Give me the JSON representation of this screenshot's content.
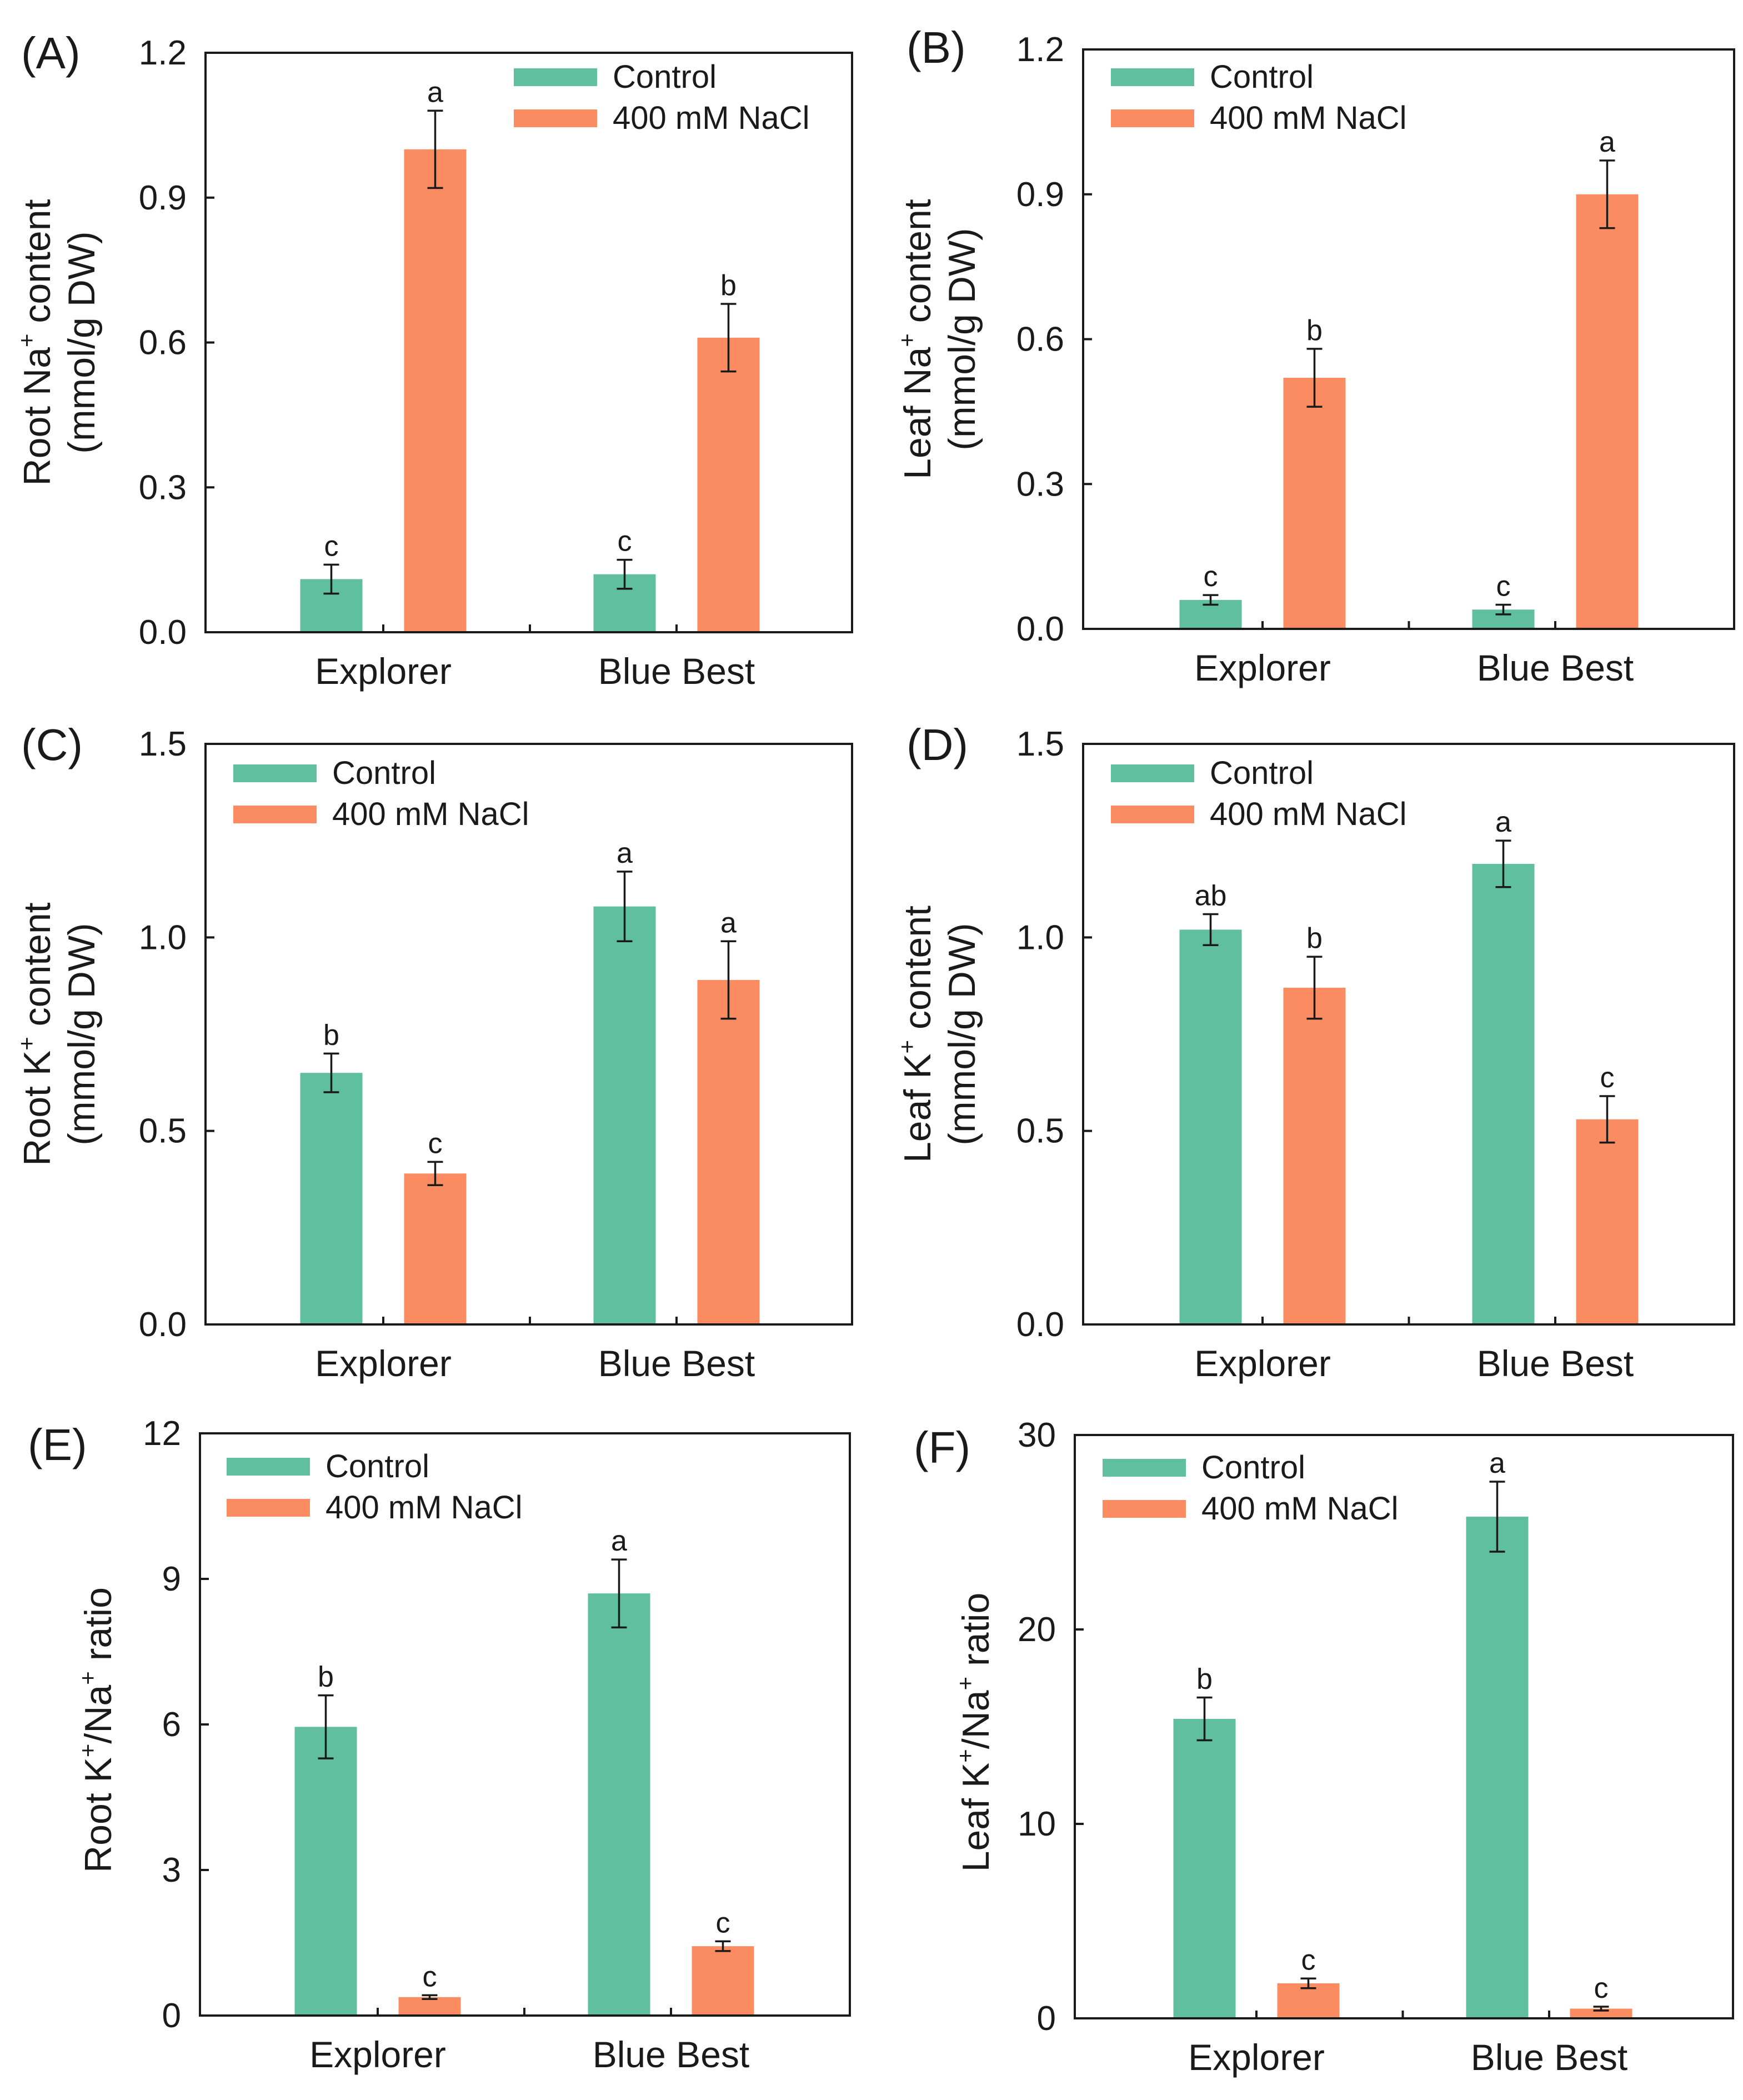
{
  "chart_data": [
    {
      "type": "bar",
      "panel": "(A)",
      "ylabel_prefix": "Root Na",
      "ylabel_sup": "+",
      "ylabel_suffix": " content",
      "ylabel_unit": "(mmol/g DW)",
      "ylim": [
        0,
        1.2
      ],
      "yticks": [
        0.0,
        0.3,
        0.6,
        0.9,
        1.2
      ],
      "ytick_labels": [
        "0.0",
        "0.3",
        "0.6",
        "0.9",
        "1.2"
      ],
      "categories": [
        "Explorer",
        "Blue Best"
      ],
      "legend_position": "top-right",
      "series": [
        {
          "name": "Control",
          "color": "#5fbf9f",
          "values": [
            0.11,
            0.12
          ],
          "errors": [
            0.03,
            0.03
          ],
          "letters": [
            "c",
            "c"
          ]
        },
        {
          "name": "400 mM NaCl",
          "color": "#fb8c62",
          "values": [
            1.0,
            0.61
          ],
          "errors": [
            0.08,
            0.07
          ],
          "letters": [
            "a",
            "b"
          ]
        }
      ]
    },
    {
      "type": "bar",
      "panel": "(B)",
      "ylabel_prefix": "Leaf Na",
      "ylabel_sup": "+",
      "ylabel_suffix": " content",
      "ylabel_unit": "(mmol/g DW)",
      "ylim": [
        0,
        1.2
      ],
      "yticks": [
        0.0,
        0.3,
        0.6,
        0.9,
        1.2
      ],
      "ytick_labels": [
        "0.0",
        "0.3",
        "0.6",
        "0.9",
        "1.2"
      ],
      "categories": [
        "Explorer",
        "Blue Best"
      ],
      "legend_position": "top-left",
      "series": [
        {
          "name": "Control",
          "color": "#5fbf9f",
          "values": [
            0.06,
            0.04
          ],
          "errors": [
            0.01,
            0.01
          ],
          "letters": [
            "c",
            "c"
          ]
        },
        {
          "name": "400 mM NaCl",
          "color": "#fb8c62",
          "values": [
            0.52,
            0.9
          ],
          "errors": [
            0.06,
            0.07
          ],
          "letters": [
            "b",
            "a"
          ]
        }
      ]
    },
    {
      "type": "bar",
      "panel": "(C)",
      "ylabel_prefix": "Root K",
      "ylabel_sup": "+",
      "ylabel_suffix": " content",
      "ylabel_unit": "(mmol/g DW)",
      "ylim": [
        0,
        1.5
      ],
      "yticks": [
        0.0,
        0.5,
        1.0,
        1.5
      ],
      "ytick_labels": [
        "0.0",
        "0.5",
        "1.0",
        "1.5"
      ],
      "categories": [
        "Explorer",
        "Blue Best"
      ],
      "legend_position": "top-left",
      "series": [
        {
          "name": "Control",
          "color": "#5fbf9f",
          "values": [
            0.65,
            1.08
          ],
          "errors": [
            0.05,
            0.09
          ],
          "letters": [
            "b",
            "a"
          ]
        },
        {
          "name": "400 mM NaCl",
          "color": "#fb8c62",
          "values": [
            0.39,
            0.89
          ],
          "errors": [
            0.03,
            0.1
          ],
          "letters": [
            "c",
            "a"
          ]
        }
      ]
    },
    {
      "type": "bar",
      "panel": "(D)",
      "ylabel_prefix": "Leaf K",
      "ylabel_sup": "+",
      "ylabel_suffix": " content",
      "ylabel_unit": "(mmol/g DW)",
      "ylim": [
        0,
        1.5
      ],
      "yticks": [
        0.0,
        0.5,
        1.0,
        1.5
      ],
      "ytick_labels": [
        "0.0",
        "0.5",
        "1.0",
        "1.5"
      ],
      "categories": [
        "Explorer",
        "Blue Best"
      ],
      "legend_position": "top-left",
      "series": [
        {
          "name": "Control",
          "color": "#5fbf9f",
          "values": [
            1.02,
            1.19
          ],
          "errors": [
            0.04,
            0.06
          ],
          "letters": [
            "ab",
            "a"
          ]
        },
        {
          "name": "400 mM NaCl",
          "color": "#fb8c62",
          "values": [
            0.87,
            0.53
          ],
          "errors": [
            0.08,
            0.06
          ],
          "letters": [
            "b",
            "c"
          ]
        }
      ]
    },
    {
      "type": "bar",
      "panel": "(E)",
      "ylabel_prefix": "Root K",
      "ylabel_sup": "+",
      "ylabel_mid": "/Na",
      "ylabel_sup2": "+",
      "ylabel_suffix": " ratio",
      "ylim": [
        0,
        12
      ],
      "yticks": [
        0,
        3,
        6,
        9,
        12
      ],
      "ytick_labels": [
        "0",
        "3",
        "6",
        "9",
        "12"
      ],
      "categories": [
        "Explorer",
        "Blue Best"
      ],
      "legend_position": "top-left",
      "series": [
        {
          "name": "Control",
          "color": "#5fbf9f",
          "values": [
            5.95,
            8.7
          ],
          "errors": [
            0.65,
            0.7
          ],
          "letters": [
            "b",
            "a"
          ]
        },
        {
          "name": "400 mM NaCl",
          "color": "#fb8c62",
          "values": [
            0.38,
            1.43
          ],
          "errors": [
            0.04,
            0.1
          ],
          "letters": [
            "c",
            "c"
          ]
        }
      ]
    },
    {
      "type": "bar",
      "panel": "(F)",
      "ylabel_prefix": "Leaf K",
      "ylabel_sup": "+",
      "ylabel_mid": "/Na",
      "ylabel_sup2": "+",
      "ylabel_suffix": " ratio",
      "ylim": [
        0,
        30
      ],
      "yticks": [
        0,
        10,
        20,
        30
      ],
      "ytick_labels": [
        "0",
        "10",
        "20",
        "30"
      ],
      "categories": [
        "Explorer",
        "Blue Best"
      ],
      "legend_position": "top-left",
      "series": [
        {
          "name": "Control",
          "color": "#5fbf9f",
          "values": [
            15.4,
            25.8
          ],
          "errors": [
            1.1,
            1.8
          ],
          "letters": [
            "b",
            "a"
          ]
        },
        {
          "name": "400 mM NaCl",
          "color": "#fb8c62",
          "values": [
            1.8,
            0.5
          ],
          "errors": [
            0.25,
            0.1
          ],
          "letters": [
            "c",
            "c"
          ]
        }
      ]
    }
  ]
}
